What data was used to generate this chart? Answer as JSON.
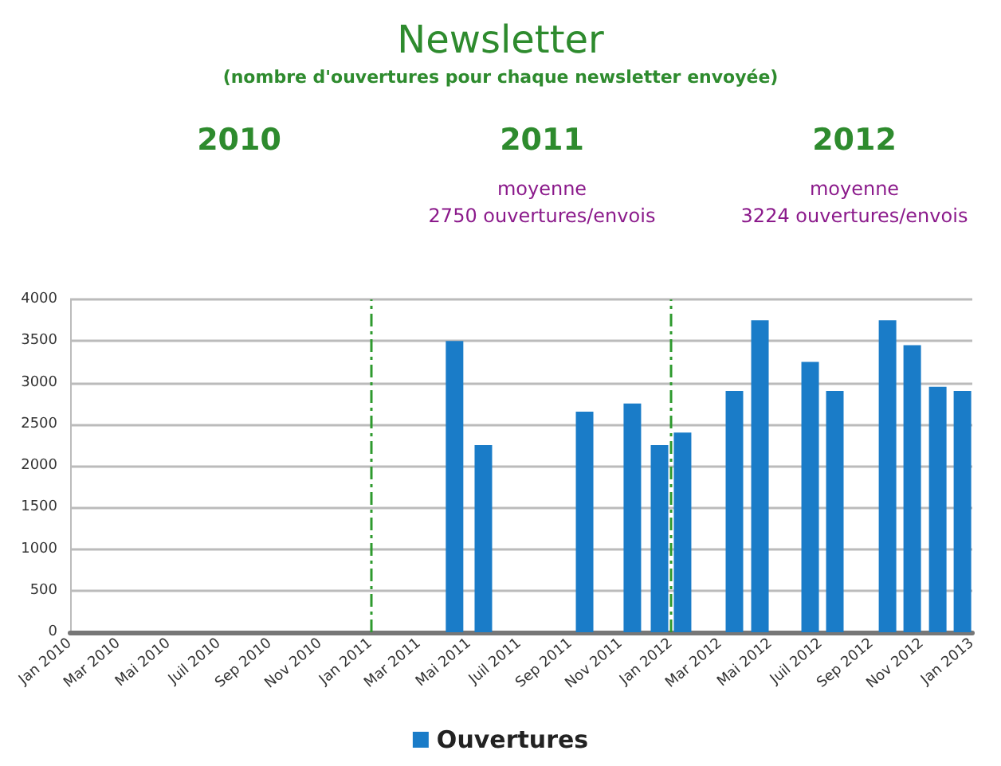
{
  "chart_data": {
    "type": "bar",
    "title": "Newsletter",
    "subtitle": "(nombre d'ouvertures pour chaque newsletter envoyée)",
    "x": [
      "2011-04-13",
      "2011-05-18",
      "2011-09-18",
      "2011-11-15",
      "2011-12-18",
      "2012-01-15",
      "2012-03-18",
      "2012-04-18",
      "2012-06-18",
      "2012-07-18",
      "2012-09-20",
      "2012-10-20",
      "2012-11-20",
      "2012-12-20"
    ],
    "series": [
      {
        "name": "Ouvertures",
        "color": "#1a7cc8",
        "values": [
          3500,
          2250,
          2650,
          2750,
          2250,
          2400,
          2900,
          3750,
          3250,
          2900,
          3750,
          3450,
          2950,
          2900
        ]
      }
    ],
    "xlim": [
      "2010-01",
      "2013-01"
    ],
    "xticks": [
      {
        "value": "2010-01",
        "label": "Jan 2010"
      },
      {
        "value": "2010-03",
        "label": "Mar 2010"
      },
      {
        "value": "2010-05",
        "label": "Mai 2010"
      },
      {
        "value": "2010-07",
        "label": "Juil 2010"
      },
      {
        "value": "2010-09",
        "label": "Sep 2010"
      },
      {
        "value": "2010-11",
        "label": "Nov 2010"
      },
      {
        "value": "2011-01",
        "label": "Jan 2011"
      },
      {
        "value": "2011-03",
        "label": "Mar 2011"
      },
      {
        "value": "2011-05",
        "label": "Mai 2011"
      },
      {
        "value": "2011-07",
        "label": "Juil 2011"
      },
      {
        "value": "2011-09",
        "label": "Sep 2011"
      },
      {
        "value": "2011-11",
        "label": "Nov 2011"
      },
      {
        "value": "2012-01",
        "label": "Jan 2012"
      },
      {
        "value": "2012-03",
        "label": "Mar 2012"
      },
      {
        "value": "2012-05",
        "label": "Mai 2012"
      },
      {
        "value": "2012-07",
        "label": "Juil 2012"
      },
      {
        "value": "2012-09",
        "label": "Sep 2012"
      },
      {
        "value": "2012-11",
        "label": "Nov 2012"
      },
      {
        "value": "2013-01",
        "label": "Jan 2013"
      }
    ],
    "ylim": [
      0,
      4000
    ],
    "yticks": [
      0,
      500,
      1000,
      1500,
      2000,
      2500,
      3000,
      3500,
      4000
    ],
    "grid": "y",
    "legend": "bottom",
    "ref_lines": [
      {
        "axis": "x",
        "value": "2011-01",
        "color": "#2e9a2e",
        "line_style": "dashed"
      },
      {
        "axis": "x",
        "value": "2012-01",
        "color": "#2e9a2e",
        "line_style": "dashed"
      }
    ],
    "annotations": [
      "2010",
      "2011",
      "moyenne\n2750 ouvertures/envois",
      "2012",
      "moyenne\n3224 ouvertures/envois"
    ]
  }
}
